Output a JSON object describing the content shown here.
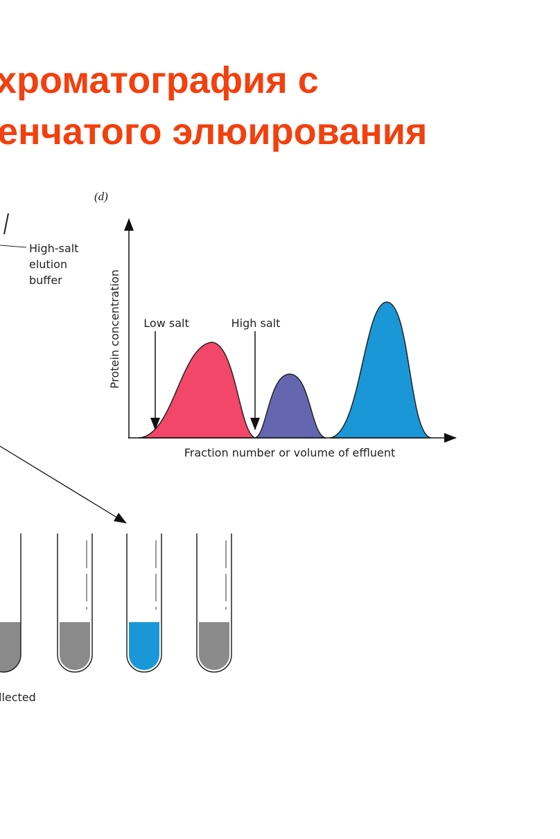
{
  "header": {
    "title_lines": [
      "хроматография с",
      "енчатого элюирования"
    ]
  },
  "column": {
    "label_lines": [
      "High-salt",
      "elution",
      "buffer"
    ]
  },
  "tubes": {
    "caption": "llected"
  },
  "graph": {
    "panel": "(d)",
    "y_axis_label": "Protein concentration",
    "x_axis_label": "Fraction number or volume of effluent",
    "annotations": [
      "Low salt",
      "High salt"
    ]
  }
}
